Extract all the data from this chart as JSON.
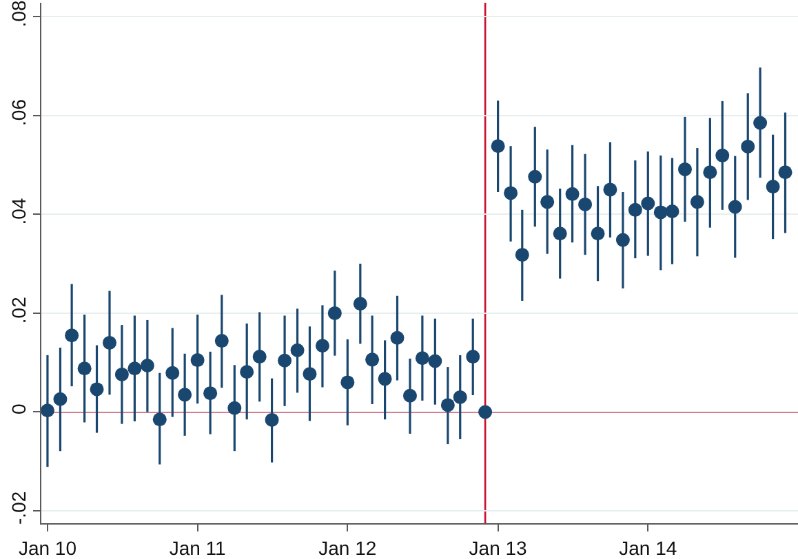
{
  "chart_data": {
    "type": "scatter",
    "x": [
      "2010-01",
      "2010-02",
      "2010-03",
      "2010-04",
      "2010-05",
      "2010-06",
      "2010-07",
      "2010-08",
      "2010-09",
      "2010-10",
      "2010-11",
      "2010-12",
      "2011-01",
      "2011-02",
      "2011-03",
      "2011-04",
      "2011-05",
      "2011-06",
      "2011-07",
      "2011-08",
      "2011-09",
      "2011-10",
      "2011-11",
      "2011-12",
      "2012-01",
      "2012-02",
      "2012-03",
      "2012-04",
      "2012-05",
      "2012-06",
      "2012-07",
      "2012-08",
      "2012-09",
      "2012-10",
      "2012-11",
      "2012-12",
      "2013-01",
      "2013-02",
      "2013-03",
      "2013-04",
      "2013-05",
      "2013-06",
      "2013-07",
      "2013-08",
      "2013-09",
      "2013-10",
      "2013-11",
      "2013-12",
      "2014-01",
      "2014-02",
      "2014-03",
      "2014-04",
      "2014-05",
      "2014-06",
      "2014-07",
      "2014-08",
      "2014-09",
      "2014-10",
      "2014-11",
      "2014-12"
    ],
    "values": [
      0.0003,
      0.0026,
      0.0155,
      0.0088,
      0.0046,
      0.014,
      0.0076,
      0.0088,
      0.0094,
      -0.0015,
      0.0079,
      0.0035,
      0.0105,
      0.0038,
      0.0144,
      0.0008,
      0.0081,
      0.0112,
      -0.0016,
      0.0104,
      0.0125,
      0.0077,
      0.0134,
      0.02,
      0.006,
      0.0219,
      0.0106,
      0.0067,
      0.015,
      0.0033,
      0.0109,
      0.0103,
      0.0014,
      0.003,
      0.0112,
      0,
      0.0538,
      0.0443,
      0.0318,
      0.0476,
      0.0425,
      0.0361,
      0.0441,
      0.042,
      0.0361,
      0.045,
      0.0348,
      0.0409,
      0.0422,
      0.0404,
      0.0406,
      0.0491,
      0.0425,
      0.0485,
      0.0519,
      0.0415,
      0.0537,
      0.0585,
      0.0456,
      0.0485
    ],
    "errors": [
      [
        -0.0111,
        0.0115
      ],
      [
        -0.0079,
        0.013
      ],
      [
        0.0052,
        0.0259
      ],
      [
        -0.0021,
        0.0197
      ],
      [
        -0.0042,
        0.0135
      ],
      [
        0.0035,
        0.0245
      ],
      [
        -0.0024,
        0.0176
      ],
      [
        -0.0019,
        0.0195
      ],
      [
        0,
        0.0186
      ],
      [
        -0.0106,
        0.0079
      ],
      [
        -0.001,
        0.017
      ],
      [
        -0.0048,
        0.0118
      ],
      [
        0.0017,
        0.0197
      ],
      [
        -0.0045,
        0.0122
      ],
      [
        0.0049,
        0.0237
      ],
      [
        -0.0079,
        0.0095
      ],
      [
        -0.0015,
        0.0179
      ],
      [
        0.0021,
        0.0202
      ],
      [
        -0.0102,
        0.0068
      ],
      [
        0.0012,
        0.0195
      ],
      [
        0.0039,
        0.0209
      ],
      [
        -0.0018,
        0.0173
      ],
      [
        0.005,
        0.0216
      ],
      [
        0.0114,
        0.0286
      ],
      [
        -0.0027,
        0.0147
      ],
      [
        0.0138,
        0.03
      ],
      [
        0.0016,
        0.0195
      ],
      [
        -0.0015,
        0.0145
      ],
      [
        0.0064,
        0.0235
      ],
      [
        -0.0044,
        0.0108
      ],
      [
        0.0023,
        0.0195
      ],
      [
        0.0015,
        0.0189
      ],
      [
        -0.0065,
        0.0091
      ],
      [
        -0.0055,
        0.0115
      ],
      [
        0.0034,
        0.0189
      ],
      null,
      [
        0.0445,
        0.063
      ],
      [
        0.0345,
        0.0538
      ],
      [
        0.0225,
        0.0409
      ],
      [
        0.0375,
        0.0577
      ],
      [
        0.032,
        0.0531
      ],
      [
        0.027,
        0.0452
      ],
      [
        0.0343,
        0.054
      ],
      [
        0.0318,
        0.0522
      ],
      [
        0.0265,
        0.0457
      ],
      [
        0.0353,
        0.0546
      ],
      [
        0.025,
        0.0445
      ],
      [
        0.0311,
        0.0509
      ],
      [
        0.0316,
        0.0527
      ],
      [
        0.0287,
        0.0519
      ],
      [
        0.0299,
        0.0514
      ],
      [
        0.0385,
        0.0597
      ],
      [
        0.0315,
        0.0534
      ],
      [
        0.0373,
        0.0595
      ],
      [
        0.0409,
        0.0629
      ],
      [
        0.0312,
        0.0518
      ],
      [
        0.0429,
        0.0645
      ],
      [
        0.0474,
        0.0697
      ],
      [
        0.035,
        0.0561
      ],
      [
        0.0362,
        0.0606
      ]
    ],
    "color": "#1a476f",
    "marker": "circle",
    "xlim": [
      "2009-12-17",
      "2015-01-01"
    ],
    "xticks": [
      {
        "value": "2010-01",
        "label": "Jan 10"
      },
      {
        "value": "2011-01",
        "label": "Jan 11"
      },
      {
        "value": "2012-01",
        "label": "Jan 12"
      },
      {
        "value": "2013-01",
        "label": "Jan 13"
      },
      {
        "value": "2014-01",
        "label": "Jan 14"
      }
    ],
    "ylim": [
      -0.0225,
      0.0828
    ],
    "yticks": [
      {
        "value": -0.02,
        "label": "-.02"
      },
      0,
      {
        "value": 0.02,
        "label": ".02"
      },
      {
        "value": 0.04,
        "label": ".04"
      },
      {
        "value": 0.06,
        "label": ".06"
      },
      {
        "value": 0.08,
        "label": ".08"
      }
    ],
    "ref_lines": [
      {
        "axis": "x",
        "value": "2012-12",
        "color": "#c8102e"
      },
      {
        "axis": "y",
        "value": 0,
        "color": "#c8102e"
      }
    ],
    "grid": "y"
  }
}
